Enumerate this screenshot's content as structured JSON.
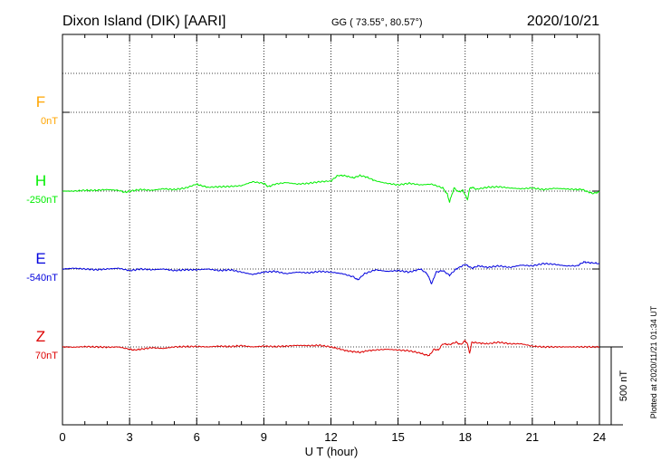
{
  "header": {
    "station": "Dixon Island (DIK)  [AARI]",
    "coords": "GG ( 73.55°,  80.57°)",
    "date": "2020/10/21"
  },
  "footer": {
    "xlabel": "U T (hour)",
    "plotted": "Plotted at 2020/11/21 01:34 UT",
    "scale": "500 nT"
  },
  "chart_data": {
    "type": "line",
    "x_label": "U T (hour)",
    "xlim": [
      0,
      24
    ],
    "x_ticks": [
      0,
      3,
      6,
      9,
      12,
      15,
      18,
      21,
      24
    ],
    "x_tick_labels": [
      "0",
      "3",
      "6",
      "9",
      "12",
      "15",
      "18",
      "21",
      "24"
    ],
    "y_unit": "nT",
    "scale_bar_nT": 500,
    "grid": true,
    "series": [
      {
        "name": "F",
        "baseline_label": "0nT",
        "baseline": 0,
        "color": "#ffa500",
        "x": [],
        "y": []
      },
      {
        "name": "H",
        "baseline_label": "-250nT",
        "baseline": -250,
        "color": "#00ee00",
        "x": [
          0,
          0.5,
          1,
          1.5,
          2,
          2.5,
          2.8,
          3,
          3.5,
          4,
          4.5,
          5,
          5.5,
          6,
          6.2,
          6.5,
          7,
          7.5,
          8,
          8.5,
          9,
          9.2,
          9.5,
          10,
          10.5,
          11,
          11.5,
          12,
          12.3,
          12.6,
          13,
          13.3,
          13.6,
          14,
          14.5,
          15,
          15.5,
          16,
          16.5,
          17,
          17.2,
          17.3,
          17.5,
          17.7,
          17.9,
          18.1,
          18.2,
          18.3,
          18.5,
          19,
          19.5,
          20,
          20.5,
          21,
          21.5,
          22,
          22.5,
          23,
          23.2,
          23.4,
          23.7,
          24
        ],
        "y": [
          -250,
          -250,
          -245,
          -245,
          -240,
          -245,
          -258,
          -250,
          -240,
          -245,
          -235,
          -240,
          -230,
          -205,
          -215,
          -225,
          -222,
          -220,
          -215,
          -190,
          -200,
          -222,
          -205,
          -195,
          -205,
          -200,
          -190,
          -185,
          -150,
          -150,
          -165,
          -150,
          -160,
          -185,
          -200,
          -210,
          -200,
          -210,
          -205,
          -230,
          -270,
          -320,
          -230,
          -255,
          -245,
          -305,
          -235,
          -225,
          -238,
          -225,
          -222,
          -230,
          -235,
          -230,
          -240,
          -232,
          -236,
          -240,
          -238,
          -250,
          -265,
          -255
        ]
      },
      {
        "name": "E",
        "baseline_label": "-540nT",
        "baseline": -540,
        "color": "#0000dd",
        "x": [
          0,
          0.5,
          1,
          1.5,
          2,
          2.5,
          3,
          3.5,
          4,
          4.5,
          5,
          5.5,
          6,
          6.5,
          7,
          7.5,
          8,
          8.5,
          9,
          9.5,
          10,
          10.5,
          11,
          11.5,
          12,
          12.5,
          13,
          13.2,
          13.5,
          14,
          14.5,
          15,
          15.5,
          16,
          16.3,
          16.5,
          16.7,
          17,
          17.3,
          17.6,
          18,
          18.3,
          18.6,
          19,
          19.5,
          20,
          20.5,
          21,
          21.5,
          22,
          22.5,
          23,
          23.3,
          23.6,
          24
        ],
        "y": [
          -540,
          -535,
          -540,
          -545,
          -540,
          -535,
          -550,
          -540,
          -545,
          -540,
          -550,
          -545,
          -545,
          -540,
          -550,
          -545,
          -560,
          -575,
          -560,
          -555,
          -570,
          -560,
          -565,
          -555,
          -560,
          -570,
          -590,
          -610,
          -570,
          -545,
          -555,
          -550,
          -560,
          -540,
          -570,
          -635,
          -560,
          -550,
          -580,
          -540,
          -510,
          -535,
          -520,
          -530,
          -520,
          -530,
          -515,
          -520,
          -505,
          -510,
          -520,
          -520,
          -495,
          -500,
          -505
        ]
      },
      {
        "name": "Z",
        "baseline_label": "70nT",
        "baseline": 70,
        "color": "#dd0000",
        "x": [
          0,
          0.5,
          1,
          1.5,
          2,
          2.5,
          3,
          3.2,
          3.5,
          4,
          4.5,
          5,
          5.5,
          6,
          6.5,
          7,
          7.5,
          8,
          8.5,
          9,
          9.5,
          10,
          10.5,
          11,
          11.5,
          12,
          12.3,
          12.7,
          13,
          13.3,
          13.6,
          14,
          14.5,
          15,
          15.5,
          16,
          16.2,
          16.4,
          16.6,
          16.8,
          17,
          17.3,
          17.6,
          17.8,
          18,
          18.1,
          18.2,
          18.3,
          18.6,
          19,
          19.5,
          20,
          20.5,
          21,
          21.5,
          22,
          22.5,
          23,
          23.5,
          24
        ],
        "y": [
          70,
          68,
          72,
          70,
          68,
          70,
          55,
          50,
          55,
          65,
          60,
          70,
          72,
          73,
          70,
          75,
          72,
          78,
          70,
          75,
          72,
          75,
          80,
          78,
          80,
          70,
          60,
          45,
          40,
          35,
          45,
          50,
          55,
          50,
          45,
          30,
          20,
          15,
          55,
          50,
          90,
          85,
          100,
          85,
          110,
          90,
          30,
          100,
          95,
          90,
          100,
          90,
          90,
          75,
          70,
          70,
          70,
          70,
          70,
          70
        ]
      }
    ]
  }
}
